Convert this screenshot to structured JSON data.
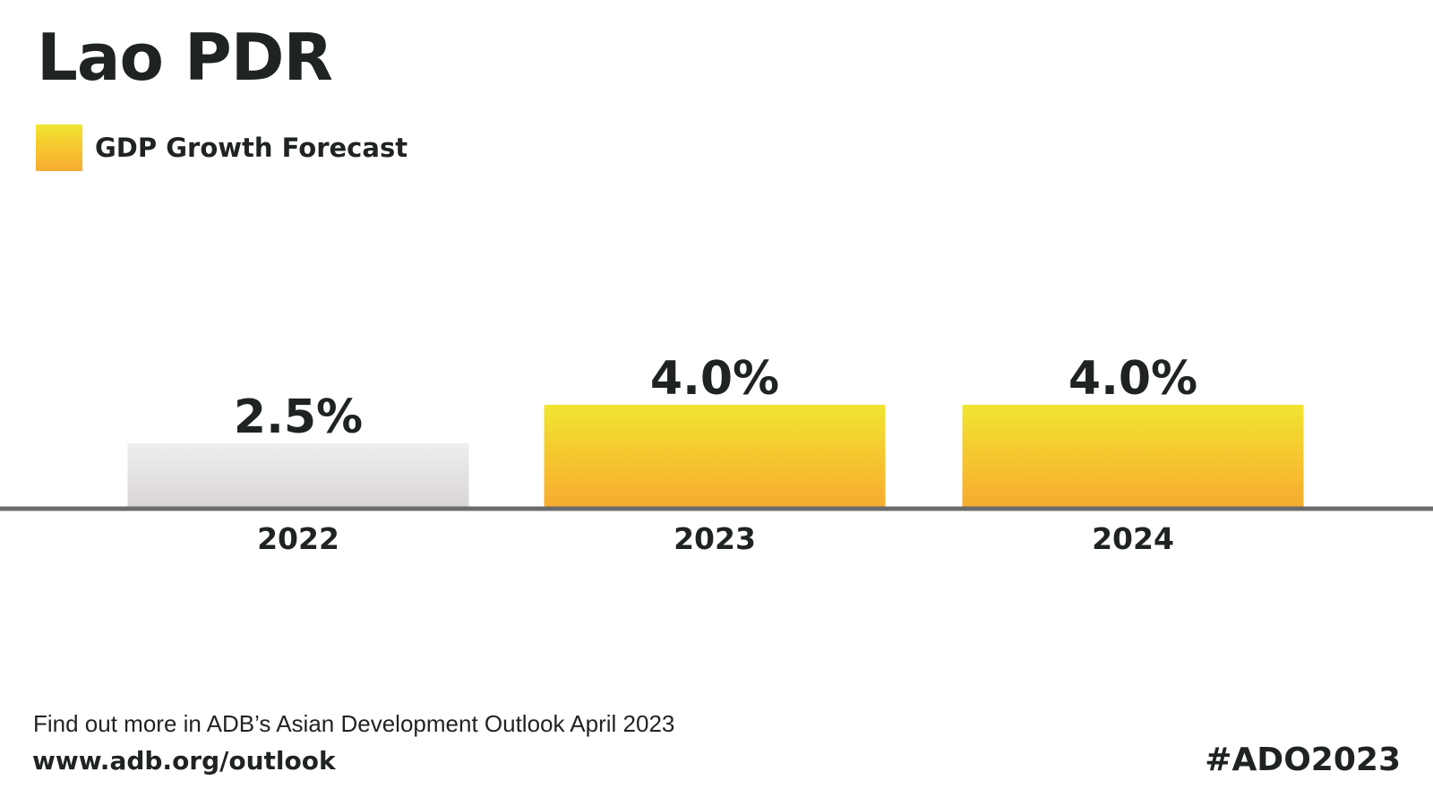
{
  "chart_data": {
    "type": "bar",
    "title": "Lao PDR",
    "categories": [
      "2022",
      "2023",
      "2024"
    ],
    "series": [
      {
        "name": "GDP Growth Forecast",
        "values": [
          2.5,
          4.0,
          4.0
        ]
      }
    ],
    "value_labels": [
      "2.5%",
      "4.0%",
      "4.0%"
    ],
    "bar_styles": [
      "actual",
      "forecast",
      "forecast"
    ],
    "ylim": [
      0,
      4.0
    ],
    "grid": false,
    "legend_position": "top-left",
    "colors": {
      "forecast_top": "#f0e531",
      "forecast_bottom": "#f6ac31",
      "actual_top": "#efeeee",
      "actual_bottom": "#d9d5d5",
      "baseline": "#6b6b6b",
      "text": "#1f2322"
    }
  },
  "legend": {
    "label": "GDP Growth Forecast",
    "icon": "legend-swatch"
  },
  "footer": {
    "note": "Find out more in ADB’s Asian Development Outlook April 2023",
    "url": "www.adb.org/outlook",
    "hashtag": "#ADO2023"
  }
}
